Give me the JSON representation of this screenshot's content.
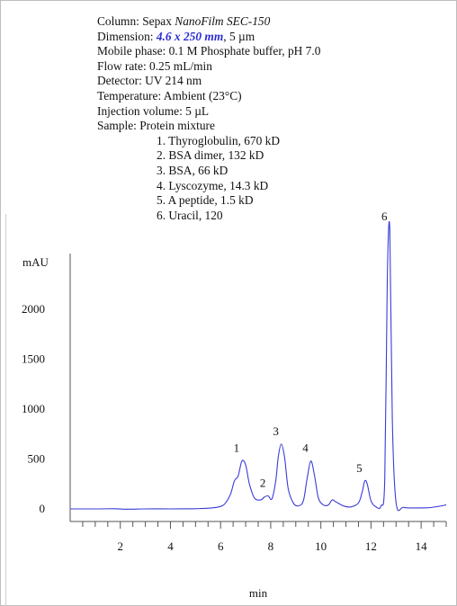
{
  "header": {
    "column_label": "Column: Sepax ",
    "column_value": "NanoFilm SEC-150",
    "dimension_label": "Dimension: ",
    "dimension_value": "4.6 x 250 mm",
    "dimension_suffix": ", 5 µm",
    "mobile_phase": "Mobile phase: 0.1 M Phosphate buffer, pH 7.0",
    "flow_rate": "Flow rate: 0.25 mL/min",
    "detector": "Detector: UV 214 nm",
    "temperature": "Temperature: Ambient (23°C)",
    "injection_volume": "Injection volume: 5 µL",
    "sample": "Sample: Protein mixture",
    "sample_items": [
      "1. Thyroglobulin, 670 kD",
      "2. BSA dimer, 132 kD",
      "3. BSA, 66 kD",
      "4. Lyscozyme, 14.3 kD",
      "5. A peptide, 1.5 kD",
      "6. Uracil, 120"
    ]
  },
  "chart_data": {
    "type": "line",
    "title": "",
    "xlabel": "min",
    "ylabel": "mAU",
    "xlim": [
      0,
      15
    ],
    "ylim": [
      -60,
      2600
    ],
    "x_ticks": [
      2,
      4,
      6,
      8,
      10,
      12,
      14
    ],
    "y_ticks": [
      0,
      500,
      1000,
      1500,
      2000
    ],
    "grid": false,
    "line_color": "#3b3bd8",
    "series": [
      {
        "x": [
          0,
          1.0,
          1.8,
          2.2,
          3.0,
          4.0,
          5.0,
          5.6,
          6.0,
          6.2,
          6.4,
          6.55,
          6.7,
          6.85,
          7.0,
          7.15,
          7.35,
          7.6,
          7.75,
          7.9,
          8.05,
          8.2,
          8.3,
          8.42,
          8.55,
          8.7,
          8.9,
          9.1,
          9.3,
          9.45,
          9.6,
          9.75,
          9.9,
          10.1,
          10.3,
          10.45,
          10.6,
          10.9,
          11.2,
          11.5,
          11.65,
          11.75,
          11.85,
          12.0,
          12.2,
          12.4,
          12.55,
          12.65,
          12.75,
          12.85,
          13.0,
          13.3,
          13.8,
          14.3,
          14.7,
          15.0
        ],
        "y": [
          0,
          0,
          2,
          -3,
          0,
          0,
          2,
          8,
          25,
          60,
          150,
          280,
          330,
          480,
          440,
          250,
          110,
          90,
          120,
          130,
          100,
          280,
          520,
          650,
          520,
          200,
          60,
          30,
          80,
          300,
          480,
          330,
          110,
          40,
          40,
          90,
          70,
          30,
          20,
          60,
          170,
          280,
          250,
          80,
          20,
          30,
          300,
          2300,
          2800,
          900,
          60,
          15,
          10,
          12,
          25,
          40
        ]
      }
    ],
    "peak_labels": [
      {
        "label": "1",
        "x": 6.85,
        "y": 480
      },
      {
        "label": "2",
        "x": 7.9,
        "y": 130
      },
      {
        "label": "3",
        "x": 8.42,
        "y": 650
      },
      {
        "label": "4",
        "x": 9.6,
        "y": 480
      },
      {
        "label": "5",
        "x": 11.75,
        "y": 280
      },
      {
        "label": "6",
        "x": 12.75,
        "y": 2800
      }
    ]
  }
}
